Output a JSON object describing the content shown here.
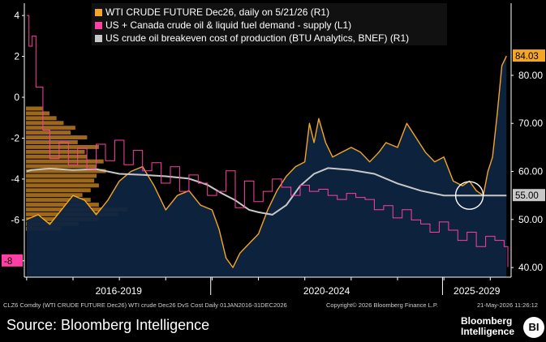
{
  "chart_data": {
    "type": "area",
    "legend": [
      {
        "name": "WTI CRUDE FUTURE Dec26, daily on 5/21/26 (R1)",
        "color": "#f5a623"
      },
      {
        "name": "US + Canada crude oil & liquid fuel demand - supply (L1)",
        "color": "#ff3fa4"
      },
      {
        "name": "US crude oil breakeven cost of production (BTU Analytics, BNEF) (R1)",
        "color": "#c8c8c8"
      }
    ],
    "legend_placement": "top-left",
    "x_period_labels": [
      "2016-2019",
      "2020-2024",
      "2025-2029"
    ],
    "left_axis": {
      "ticks": [
        "4",
        "2",
        "0",
        "-2",
        "-4",
        "-6",
        "-8"
      ],
      "ylim": [
        -8.8,
        4.6
      ]
    },
    "right_axis": {
      "ticks": [
        "80.00",
        "70.00",
        "60.00",
        "50.00",
        "40.00"
      ],
      "ylim": [
        38,
        95
      ]
    },
    "last_value_labels": {
      "wti": "84.03",
      "breakeven": "55.00",
      "demand_supply": "-8"
    },
    "highlight": "circle around breakeven level in 2025",
    "histogram": {
      "description": "volume-at-price histogram of WTI prices, drawn against the left edge",
      "price_bins": [
        48,
        49,
        50,
        51,
        52,
        53,
        54,
        55,
        56,
        57,
        58,
        59,
        60,
        61,
        62,
        63,
        64,
        65,
        66,
        67,
        68,
        69,
        70,
        71,
        72,
        73
      ],
      "relative_length": [
        0.3,
        0.45,
        0.62,
        0.78,
        0.86,
        0.62,
        0.55,
        0.48,
        0.55,
        0.62,
        0.58,
        0.6,
        0.68,
        0.6,
        0.66,
        0.52,
        0.5,
        0.62,
        0.44,
        0.52,
        0.38,
        0.42,
        0.32,
        0.26,
        0.2,
        0.14
      ]
    },
    "wti_series": {
      "x": [
        2016.0,
        2016.25,
        2016.5,
        2016.75,
        2017.0,
        2017.25,
        2017.5,
        2017.75,
        2018.0,
        2018.25,
        2018.5,
        2018.75,
        2019.0,
        2019.25,
        2019.5,
        2019.75,
        2020.0,
        2020.15,
        2020.3,
        2020.45,
        2020.6,
        2020.8,
        2021.0,
        2021.2,
        2021.4,
        2021.6,
        2021.8,
        2022.0,
        2022.1,
        2022.2,
        2022.3,
        2022.45,
        2022.6,
        2022.8,
        2023.0,
        2023.2,
        2023.4,
        2023.6,
        2023.75,
        2024.0,
        2024.2,
        2024.4,
        2024.6,
        2024.8,
        2025.0,
        2025.2,
        2025.4,
        2025.55,
        2025.7,
        2025.85,
        2025.95,
        2026.05,
        2026.15,
        2026.25,
        2026.35
      ],
      "values": [
        50,
        51,
        49,
        52,
        55,
        54,
        51,
        54,
        58,
        60,
        61,
        57,
        52,
        55,
        56,
        53,
        52,
        48,
        42,
        40,
        43,
        45,
        47,
        52,
        56,
        59,
        61,
        62,
        70,
        66,
        71,
        66,
        63,
        64,
        65,
        64,
        62,
        64,
        66,
        65,
        70,
        67,
        64,
        62,
        63,
        58,
        57,
        58,
        56,
        55,
        60,
        63,
        72,
        82,
        84.03
      ]
    },
    "breakeven_series": {
      "x": [
        2016.0,
        2016.1,
        2016.5,
        2017.0,
        2017.5,
        2018.0,
        2018.5,
        2019.0,
        2019.5,
        2019.9,
        2020.2,
        2020.5,
        2020.8,
        2021.0,
        2021.3,
        2021.6,
        2021.9,
        2022.2,
        2022.5,
        2023.0,
        2023.5,
        2024.0,
        2024.5,
        2025.0,
        2025.5,
        2026.0,
        2026.35
      ],
      "values": [
        60,
        60.3,
        60.6,
        60.3,
        60.5,
        59.5,
        59.3,
        59,
        58.5,
        57.2,
        55.5,
        54,
        52,
        51.5,
        51,
        53,
        57,
        59.5,
        60.7,
        60.3,
        59.5,
        57.5,
        56,
        55,
        55,
        55,
        55
      ]
    },
    "demand_supply_series": {
      "x": [
        2016.0,
        2016.05,
        2016.12,
        2016.2,
        2016.35,
        2016.5,
        2016.7,
        2016.9,
        2017.1,
        2017.3,
        2017.5,
        2017.7,
        2017.9,
        2018.1,
        2018.3,
        2018.5,
        2018.7,
        2018.9,
        2019.1,
        2019.3,
        2019.5,
        2019.7,
        2019.9,
        2020.1,
        2020.3,
        2020.5,
        2020.7,
        2020.9,
        2021.1,
        2021.3,
        2021.5,
        2021.7,
        2021.9,
        2022.1,
        2022.3,
        2022.5,
        2022.7,
        2022.9,
        2023.1,
        2023.3,
        2023.5,
        2023.7,
        2023.9,
        2024.1,
        2024.3,
        2024.5,
        2024.7,
        2024.9,
        2025.1,
        2025.3,
        2025.5,
        2025.7,
        2025.9,
        2026.1,
        2026.3,
        2026.38
      ],
      "values": [
        4,
        2.5,
        3,
        0.5,
        -1.6,
        -3,
        -2.2,
        -3.3,
        -2.5,
        -3.5,
        -2.3,
        -3.1,
        -2.1,
        -3.3,
        -2.6,
        -3.6,
        -3.2,
        -4.2,
        -3.4,
        -4.6,
        -3.8,
        -4.2,
        -4.8,
        -4.6,
        -3.6,
        -5.4,
        -4.1,
        -5.1,
        -4.6,
        -4.0,
        -4.4,
        -4.8,
        -4.3,
        -4.6,
        -4.5,
        -4.8,
        -5.0,
        -4.7,
        -4.9,
        -5.0,
        -5.5,
        -5.3,
        -5.9,
        -5.5,
        -6.0,
        -6.2,
        -6.6,
        -6.1,
        -6.5,
        -7.0,
        -6.6,
        -7.3,
        -6.8,
        -7.0,
        -7.3,
        -8.3
      ]
    }
  },
  "legend_bind": {
    "wti": "WTI CRUDE FUTURE Dec26, daily on 5/21/26 (R1)",
    "demand": "US + Canada crude oil & liquid fuel demand - supply (L1)",
    "breakeven": "US crude oil breakeven cost of production (BTU Analytics, BNEF) (R1)"
  },
  "footer": {
    "left_meta": "CLZ6 Comdty (WTI CRUDE FUTURE  Dec26) WTI crude Dec26 DvS Cost Daily 01JAN2016-31DEC2026",
    "center_meta": "Copyright© 2026 Bloomberg Finance L.P.",
    "right_meta": "21-May-2026 11:26:12",
    "source": "Source: Bloomberg Intelligence",
    "brand_line1": "Bloomberg",
    "brand_line2": "Intelligence",
    "brand_badge": "BI"
  },
  "colors": {
    "background": "#000000",
    "plot_fill": "#0e2440",
    "wti": "#f5a623",
    "breakeven": "#c8c8c8",
    "demand_supply": "#ff3fa4",
    "histogram": "#b87a1e"
  }
}
